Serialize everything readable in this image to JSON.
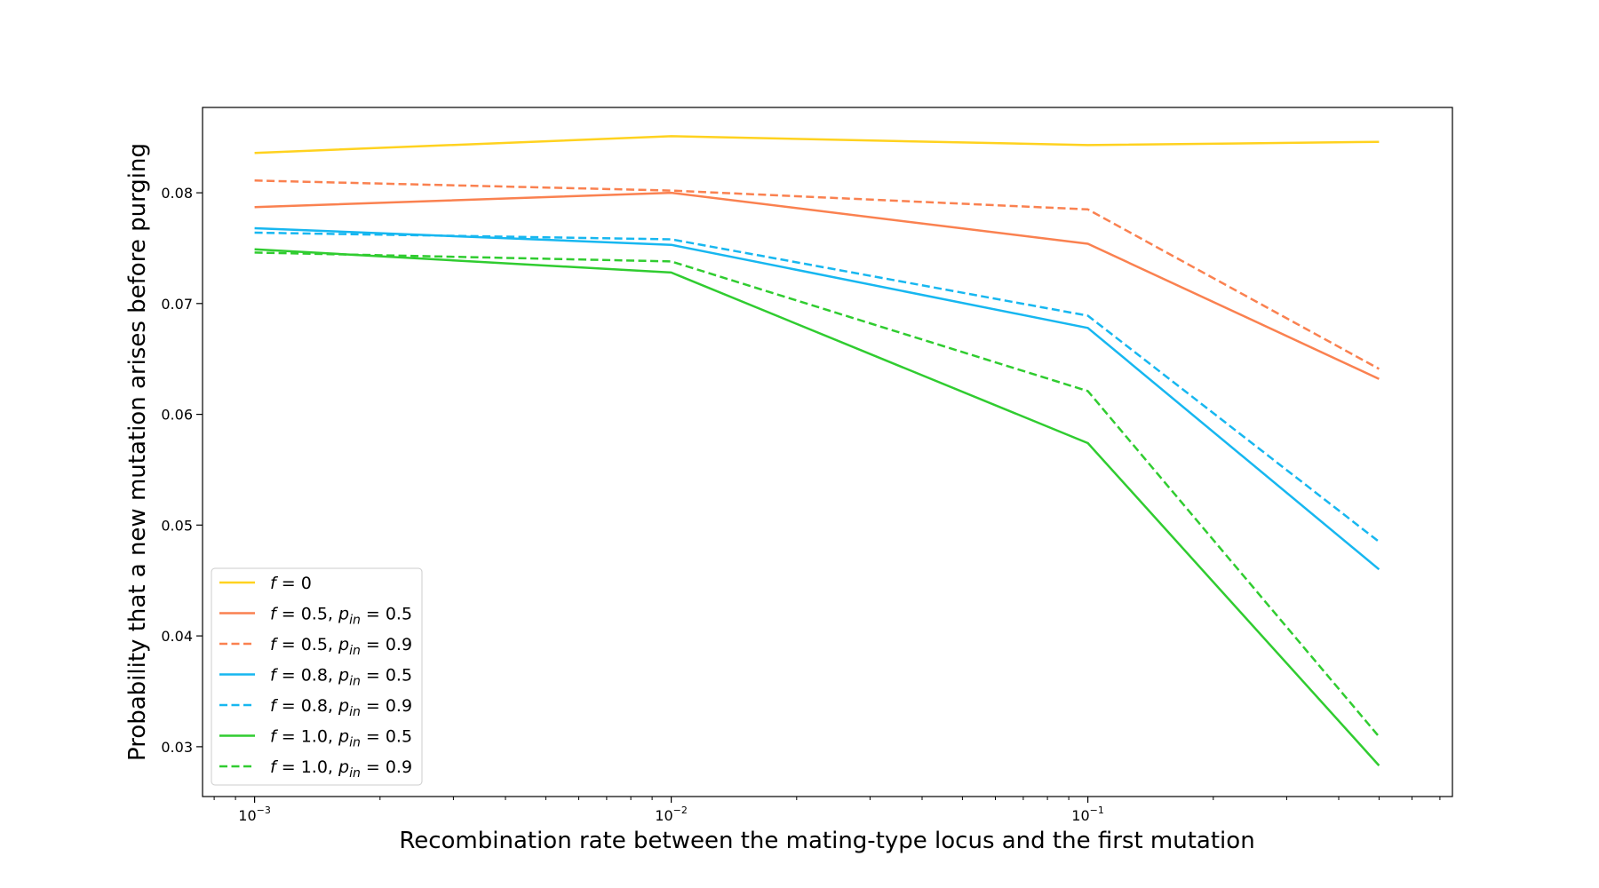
{
  "chart_data": {
    "type": "line",
    "title": "",
    "xlabel": "Recombination rate between the mating-type locus and the first mutation",
    "ylabel": "Probability that a new mutation arises before purging",
    "xscale": "log",
    "xlim": [
      0.00075,
      0.75
    ],
    "ylim": [
      0.0255,
      0.0877
    ],
    "x": [
      0.001,
      0.01,
      0.1,
      0.5
    ],
    "x_ticks": [
      {
        "value": 0.001,
        "base": "10",
        "exp": "−3"
      },
      {
        "value": 0.01,
        "base": "10",
        "exp": "−2"
      },
      {
        "value": 0.1,
        "base": "10",
        "exp": "−1"
      }
    ],
    "y_ticks": [
      {
        "value": 0.03,
        "label": "0.03"
      },
      {
        "value": 0.04,
        "label": "0.04"
      },
      {
        "value": 0.05,
        "label": "0.05"
      },
      {
        "value": 0.06,
        "label": "0.06"
      },
      {
        "value": 0.07,
        "label": "0.07"
      },
      {
        "value": 0.08,
        "label": "0.08"
      }
    ],
    "grid": false,
    "legend_position": "lower-left",
    "series": [
      {
        "key": "f0",
        "color": "#FFD21F",
        "dashed": false,
        "values": [
          0.0836,
          0.0851,
          0.0843,
          0.0846
        ],
        "legend": [
          {
            "t": "f",
            "i": true
          },
          {
            "t": " = 0"
          }
        ]
      },
      {
        "key": "f05_p05",
        "color": "#FA8150",
        "dashed": false,
        "values": [
          0.0787,
          0.08,
          0.0754,
          0.0632
        ],
        "legend": [
          {
            "t": "f",
            "i": true
          },
          {
            "t": " = 0.5, "
          },
          {
            "t": "p",
            "i": true
          },
          {
            "t": "in",
            "i": true,
            "sub": true
          },
          {
            "t": " = 0.5"
          }
        ]
      },
      {
        "key": "f05_p09",
        "color": "#FA8150",
        "dashed": true,
        "values": [
          0.0811,
          0.0802,
          0.0785,
          0.0641
        ],
        "legend": [
          {
            "t": "f",
            "i": true
          },
          {
            "t": " = 0.5, "
          },
          {
            "t": "p",
            "i": true
          },
          {
            "t": "in",
            "i": true,
            "sub": true
          },
          {
            "t": " = 0.9"
          }
        ]
      },
      {
        "key": "f08_p05",
        "color": "#17B7F0",
        "dashed": false,
        "values": [
          0.0768,
          0.0753,
          0.0678,
          0.046
        ],
        "legend": [
          {
            "t": "f",
            "i": true
          },
          {
            "t": " = 0.8, "
          },
          {
            "t": "p",
            "i": true
          },
          {
            "t": "in",
            "i": true,
            "sub": true
          },
          {
            "t": " = 0.5"
          }
        ]
      },
      {
        "key": "f08_p09",
        "color": "#17B7F0",
        "dashed": true,
        "values": [
          0.0764,
          0.0758,
          0.0689,
          0.0485
        ],
        "legend": [
          {
            "t": "f",
            "i": true
          },
          {
            "t": " = 0.8, "
          },
          {
            "t": "p",
            "i": true
          },
          {
            "t": "in",
            "i": true,
            "sub": true
          },
          {
            "t": " = 0.9"
          }
        ]
      },
      {
        "key": "f10_p05",
        "color": "#30CC30",
        "dashed": false,
        "values": [
          0.0749,
          0.0728,
          0.0574,
          0.0283
        ],
        "legend": [
          {
            "t": "f",
            "i": true
          },
          {
            "t": " = 1.0, "
          },
          {
            "t": "p",
            "i": true
          },
          {
            "t": "in",
            "i": true,
            "sub": true
          },
          {
            "t": " = 0.5"
          }
        ]
      },
      {
        "key": "f10_p09",
        "color": "#30CC30",
        "dashed": true,
        "values": [
          0.0746,
          0.0738,
          0.0621,
          0.0309
        ],
        "legend": [
          {
            "t": "f",
            "i": true
          },
          {
            "t": " = 1.0, "
          },
          {
            "t": "p",
            "i": true
          },
          {
            "t": "in",
            "i": true,
            "sub": true
          },
          {
            "t": " = 0.9"
          }
        ]
      }
    ]
  }
}
